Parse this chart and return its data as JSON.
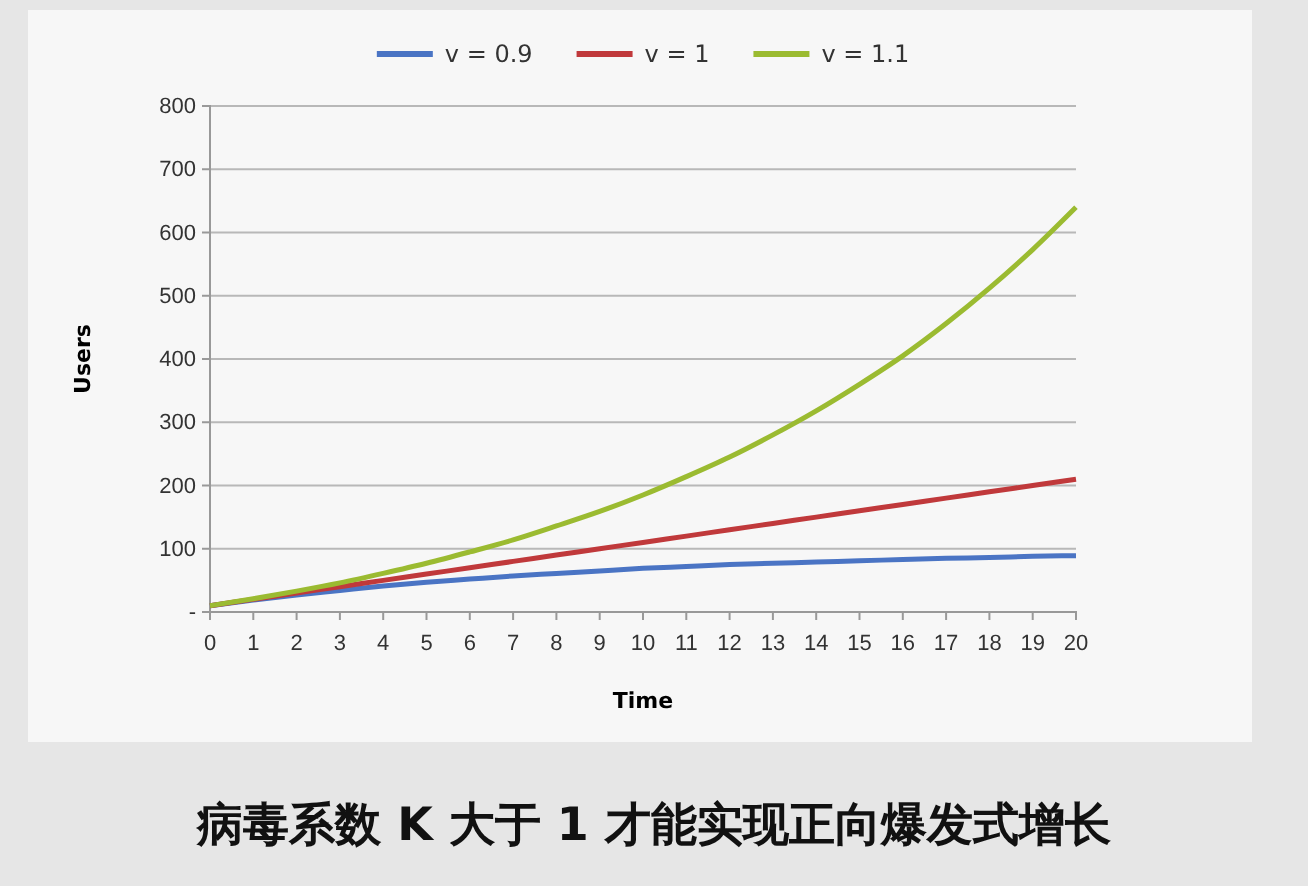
{
  "chart_data": {
    "type": "line",
    "xlabel": "Time",
    "ylabel": "Users",
    "x": [
      0,
      1,
      2,
      3,
      4,
      5,
      6,
      7,
      8,
      9,
      10,
      11,
      12,
      13,
      14,
      15,
      16,
      17,
      18,
      19,
      20
    ],
    "series": [
      {
        "name": "v = 0.9",
        "color": "#4a74c4",
        "values": [
          10,
          19,
          27,
          34,
          41,
          47,
          52,
          57,
          61,
          65,
          69,
          72,
          75,
          77,
          79,
          81,
          83,
          85,
          86,
          88,
          89
        ]
      },
      {
        "name": "v = 1",
        "color": "#c0393b",
        "values": [
          10,
          20,
          30,
          40,
          50,
          60,
          70,
          80,
          90,
          100,
          110,
          120,
          130,
          140,
          150,
          160,
          170,
          180,
          190,
          200,
          210
        ]
      },
      {
        "name": "v = 1.1",
        "color": "#9bbb31",
        "values": [
          10,
          21,
          33,
          46,
          61,
          77,
          95,
          114,
          136,
          159,
          185,
          214,
          245,
          280,
          318,
          360,
          405,
          456,
          512,
          573,
          640
        ]
      }
    ],
    "xlim": [
      0,
      20
    ],
    "xticks": [
      0,
      1,
      2,
      3,
      4,
      5,
      6,
      7,
      8,
      9,
      10,
      11,
      12,
      13,
      14,
      15,
      16,
      17,
      18,
      19,
      20
    ],
    "ylim": [
      0,
      800
    ],
    "yticks": [
      {
        "value": 0,
        "label": "-"
      },
      100,
      200,
      300,
      400,
      500,
      600,
      700,
      800
    ],
    "grid": "y",
    "legend": "top",
    "marker": "none",
    "line_style": "solid",
    "annotations": [
      "病毒系数 K 大于 1 才能实现正向爆发式增长"
    ]
  }
}
